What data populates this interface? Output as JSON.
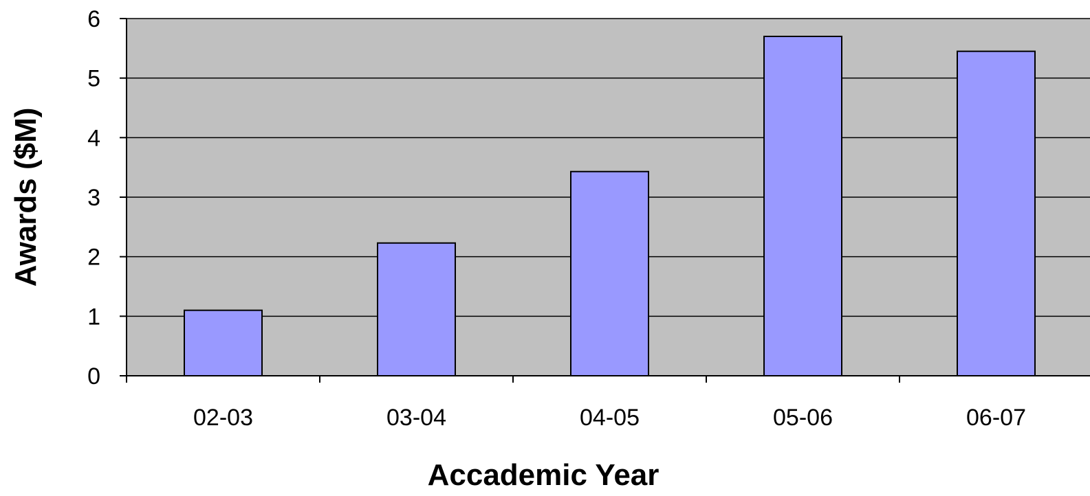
{
  "chart_data": {
    "type": "bar",
    "title": "",
    "xlabel": "Accademic Year",
    "ylabel": "Awards ($M)",
    "categories": [
      "02-03",
      "03-04",
      "04-05",
      "05-06",
      "06-07"
    ],
    "values": [
      1.1,
      2.23,
      3.43,
      5.7,
      5.45
    ],
    "ylim": [
      0,
      6
    ],
    "yticks": [
      0,
      1,
      2,
      3,
      4,
      5,
      6
    ],
    "grid": true,
    "legend": "none",
    "colors": {
      "plot_background": "#c0c0c0",
      "bar_fill": "#9999ff",
      "bar_stroke": "#000000",
      "gridline": "#000000"
    }
  }
}
